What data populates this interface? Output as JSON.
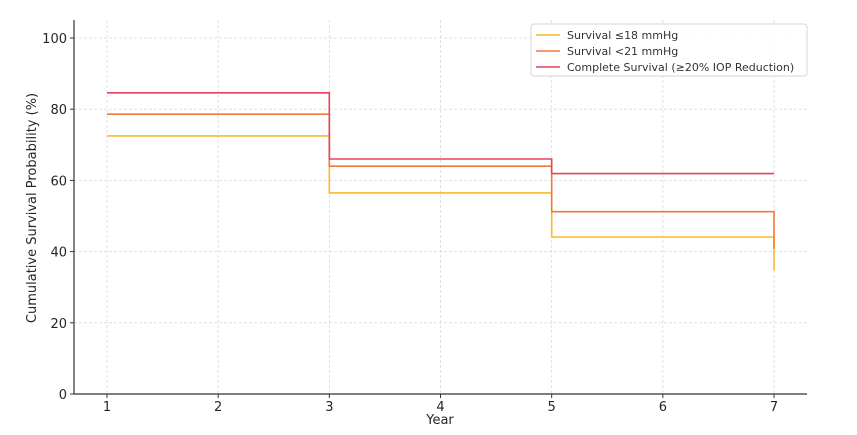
{
  "chart_data": {
    "type": "line",
    "step": "post",
    "title": "",
    "xlabel": "Year",
    "ylabel": "Cumulative Survival Probability (%)",
    "xlim": [
      0.7,
      7.3
    ],
    "ylim": [
      0,
      105
    ],
    "x_ticks": [
      1,
      2,
      3,
      4,
      5,
      6,
      7
    ],
    "y_ticks": [
      0,
      20,
      40,
      60,
      80,
      100
    ],
    "grid": true,
    "legend_position": "upper right",
    "x": [
      1,
      3,
      5,
      7
    ],
    "series": [
      {
        "name": "Survival ≤18 mmHg",
        "color": "#FDB827",
        "points": [
          [
            1,
            72.5
          ],
          [
            3,
            72.5
          ],
          [
            3,
            56.5
          ],
          [
            5,
            56.5
          ],
          [
            5,
            44.1
          ],
          [
            7,
            44.1
          ],
          [
            7,
            34.6
          ]
        ],
        "values": [
          72.5,
          56.5,
          44.1,
          34.6
        ]
      },
      {
        "name": "Survival <21 mmHg",
        "color": "#F4773A",
        "points": [
          [
            1,
            78.6
          ],
          [
            3,
            78.6
          ],
          [
            3,
            64.0
          ],
          [
            5,
            64.0
          ],
          [
            5,
            51.2
          ],
          [
            7,
            51.2
          ],
          [
            7,
            40.8
          ]
        ],
        "values": [
          78.6,
          64.0,
          51.2,
          40.8
        ]
      },
      {
        "name": "Complete Survival (≥20% IOP Reduction)",
        "color": "#E8405F",
        "points": [
          [
            1,
            84.6
          ],
          [
            3,
            84.6
          ],
          [
            3,
            66.0
          ],
          [
            5,
            66.0
          ],
          [
            5,
            61.9
          ],
          [
            7,
            61.9
          ]
        ],
        "values": [
          84.6,
          66.0,
          61.9,
          61.9
        ]
      }
    ]
  },
  "legend": {
    "items": [
      {
        "label": "Survival ≤18 mmHg",
        "color": "#FDB827"
      },
      {
        "label": "Survival <21 mmHg",
        "color": "#F4773A"
      },
      {
        "label": "Complete Survival (≥20% IOP Reduction)",
        "color": "#E8405F"
      }
    ]
  },
  "axes": {
    "x_label": "Year",
    "y_label": "Cumulative Survival Probability (%)",
    "x_tick_labels": [
      "1",
      "2",
      "3",
      "4",
      "5",
      "6",
      "7"
    ],
    "y_tick_labels": [
      "0",
      "20",
      "40",
      "60",
      "80",
      "100"
    ]
  }
}
